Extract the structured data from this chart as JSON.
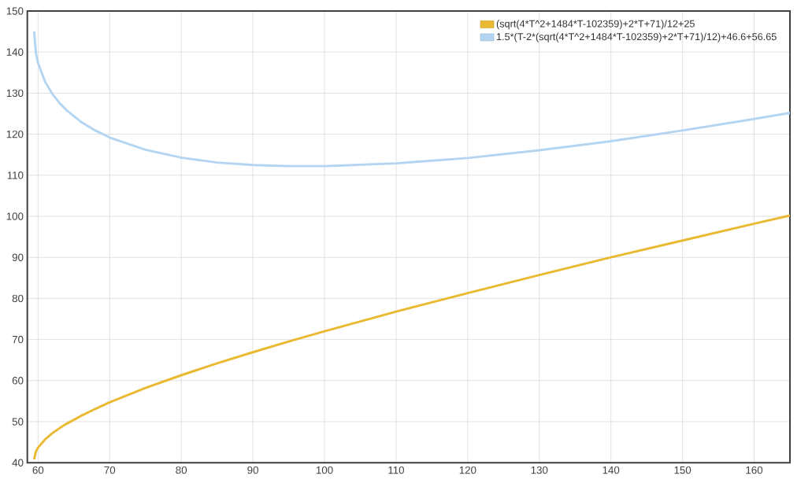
{
  "chart_data": {
    "type": "line",
    "x": [
      59.45,
      59.7,
      60,
      61,
      62,
      63,
      64,
      66,
      68,
      70,
      75,
      80,
      85,
      90,
      95,
      100,
      110,
      120,
      130,
      140,
      150,
      160,
      165
    ],
    "series": [
      {
        "name": "(sqrt(4*T^2+1484*T-102359)+2*T+71)/12+25",
        "color": "#e8b931",
        "values": [
          40.8,
          42.7,
          43.7,
          45.7,
          47.2,
          48.4,
          49.5,
          51.4,
          53.1,
          54.7,
          58.2,
          61.3,
          64.2,
          66.9,
          69.5,
          72.0,
          76.8,
          81.3,
          85.7,
          90.0,
          94.1,
          98.2,
          100.2
        ]
      },
      {
        "name": "1.5*(T-2*(sqrt(4*T^2+1484*T-102359)+2*T+71)/12)+46.6+56.65",
        "color": "#b3d5f2",
        "values": [
          145.0,
          139.7,
          137.3,
          132.7,
          129.8,
          127.6,
          125.8,
          123.0,
          120.9,
          119.2,
          116.2,
          114.3,
          113.1,
          112.5,
          112.2,
          112.2,
          112.9,
          114.2,
          116.1,
          118.3,
          120.9,
          123.7,
          125.2
        ]
      }
    ],
    "xlim": [
      58.5,
      165
    ],
    "ylim": [
      40,
      150
    ],
    "xticks": [
      60,
      70,
      80,
      90,
      100,
      110,
      120,
      130,
      140,
      150,
      160
    ],
    "yticks": [
      40,
      50,
      60,
      70,
      80,
      90,
      100,
      110,
      120,
      130,
      140,
      150
    ],
    "grid": true,
    "legend": "top right",
    "marker": "none",
    "line_style": "solid"
  }
}
